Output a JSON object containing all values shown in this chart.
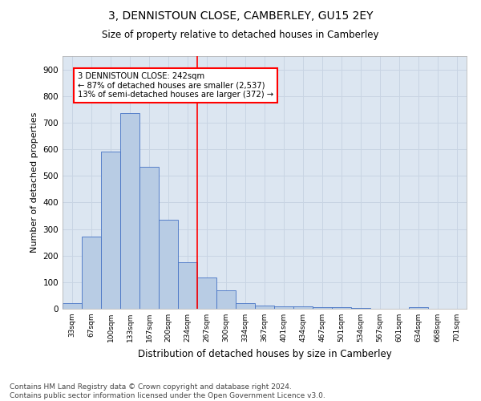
{
  "title": "3, DENNISTOUN CLOSE, CAMBERLEY, GU15 2EY",
  "subtitle": "Size of property relative to detached houses in Camberley",
  "xlabel": "Distribution of detached houses by size in Camberley",
  "ylabel": "Number of detached properties",
  "categories": [
    "33sqm",
    "67sqm",
    "100sqm",
    "133sqm",
    "167sqm",
    "200sqm",
    "234sqm",
    "267sqm",
    "300sqm",
    "334sqm",
    "367sqm",
    "401sqm",
    "434sqm",
    "467sqm",
    "501sqm",
    "534sqm",
    "567sqm",
    "601sqm",
    "634sqm",
    "668sqm",
    "701sqm"
  ],
  "values": [
    20,
    270,
    590,
    735,
    535,
    335,
    175,
    118,
    68,
    22,
    13,
    10,
    8,
    6,
    5,
    4,
    0,
    0,
    5,
    0,
    0
  ],
  "bar_color": "#b8cce4",
  "bar_edge_color": "#4472c4",
  "annotation_text_line1": "3 DENNISTOUN CLOSE: 242sqm",
  "annotation_text_line2": "← 87% of detached houses are smaller (2,537)",
  "annotation_text_line3": "13% of semi-detached houses are larger (372) →",
  "ylim": [
    0,
    950
  ],
  "yticks": [
    0,
    100,
    200,
    300,
    400,
    500,
    600,
    700,
    800,
    900
  ],
  "background_color": "#ffffff",
  "plot_bg_color": "#dce6f1",
  "grid_color": "#c8d4e3",
  "footer_line1": "Contains HM Land Registry data © Crown copyright and database right 2024.",
  "footer_line2": "Contains public sector information licensed under the Open Government Licence v3.0."
}
